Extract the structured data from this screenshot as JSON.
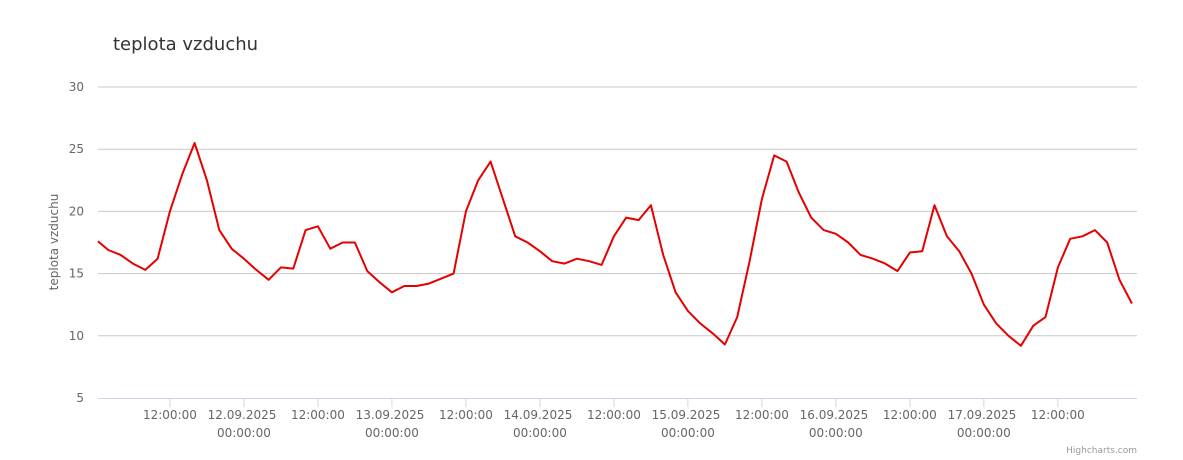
{
  "chart_data": {
    "type": "line",
    "title": "teplota vzduchu",
    "y_label": "teplota vzduchu",
    "credits": "Highcharts.com",
    "x": [
      "2025-09-11T00:20",
      "2025-09-11T02:00",
      "2025-09-11T04:00",
      "2025-09-11T06:00",
      "2025-09-11T08:00",
      "2025-09-11T10:00",
      "2025-09-11T12:00",
      "2025-09-11T14:00",
      "2025-09-11T16:00",
      "2025-09-11T18:00",
      "2025-09-11T20:00",
      "2025-09-11T22:00",
      "2025-09-12T00:00",
      "2025-09-12T02:00",
      "2025-09-12T04:00",
      "2025-09-12T06:00",
      "2025-09-12T08:00",
      "2025-09-12T10:00",
      "2025-09-12T12:00",
      "2025-09-12T14:00",
      "2025-09-12T16:00",
      "2025-09-12T18:00",
      "2025-09-12T20:00",
      "2025-09-12T22:00",
      "2025-09-13T00:00",
      "2025-09-13T02:00",
      "2025-09-13T04:00",
      "2025-09-13T06:00",
      "2025-09-13T08:00",
      "2025-09-13T10:00",
      "2025-09-13T12:00",
      "2025-09-13T14:00",
      "2025-09-13T16:00",
      "2025-09-13T18:00",
      "2025-09-13T20:00",
      "2025-09-13T22:00",
      "2025-09-14T00:00",
      "2025-09-14T02:00",
      "2025-09-14T04:00",
      "2025-09-14T06:00",
      "2025-09-14T08:00",
      "2025-09-14T10:00",
      "2025-09-14T12:00",
      "2025-09-14T14:00",
      "2025-09-14T16:00",
      "2025-09-14T18:00",
      "2025-09-14T20:00",
      "2025-09-14T22:00",
      "2025-09-15T00:00",
      "2025-09-15T02:00",
      "2025-09-15T04:00",
      "2025-09-15T06:00",
      "2025-09-15T08:00",
      "2025-09-15T10:00",
      "2025-09-15T12:00",
      "2025-09-15T14:00",
      "2025-09-15T16:00",
      "2025-09-15T18:00",
      "2025-09-15T20:00",
      "2025-09-15T22:00",
      "2025-09-16T00:00",
      "2025-09-16T02:00",
      "2025-09-16T04:00",
      "2025-09-16T06:00",
      "2025-09-16T08:00",
      "2025-09-16T10:00",
      "2025-09-16T12:00",
      "2025-09-16T14:00",
      "2025-09-16T16:00",
      "2025-09-16T18:00",
      "2025-09-16T20:00",
      "2025-09-16T22:00",
      "2025-09-17T00:00",
      "2025-09-17T02:00",
      "2025-09-17T04:00",
      "2025-09-17T06:00",
      "2025-09-17T08:00",
      "2025-09-17T10:00",
      "2025-09-17T12:00",
      "2025-09-17T14:00",
      "2025-09-17T16:00",
      "2025-09-17T18:00",
      "2025-09-17T20:00",
      "2025-09-17T22:00",
      "2025-09-18T00:00"
    ],
    "series": [
      {
        "name": "teplota vzduchu",
        "color": "#e60000",
        "values": [
          17.6,
          16.9,
          16.5,
          15.8,
          15.3,
          16.2,
          20.0,
          23.0,
          25.5,
          22.5,
          18.5,
          17.0,
          16.2,
          15.3,
          14.5,
          15.5,
          15.4,
          18.5,
          18.8,
          17.0,
          17.5,
          17.5,
          15.2,
          14.3,
          13.5,
          14.0,
          14.0,
          14.2,
          14.6,
          15.0,
          20.0,
          22.5,
          24.0,
          21.0,
          18.0,
          17.5,
          16.8,
          16.0,
          15.8,
          16.2,
          16.0,
          15.7,
          18.0,
          19.5,
          19.3,
          20.5,
          16.5,
          13.5,
          12.0,
          11.0,
          10.2,
          9.3,
          11.5,
          16.0,
          21.0,
          24.5,
          24.0,
          21.5,
          19.5,
          18.5,
          18.2,
          17.5,
          16.5,
          16.2,
          15.8,
          15.2,
          16.7,
          16.8,
          20.5,
          18.0,
          16.8,
          15.0,
          12.5,
          11.0,
          10.0,
          9.2,
          10.8,
          11.5,
          15.5,
          17.8,
          18.0,
          18.5,
          17.5,
          14.5,
          12.6
        ]
      }
    ],
    "xlim": [
      "2025-09-11T00:20",
      "2025-09-18T00:50"
    ],
    "xticks": [
      {
        "value": "2025-09-11T12:00",
        "label": "12:00:00"
      },
      {
        "value": "2025-09-12T00:00",
        "label": "12.09.2025 00:00:00"
      },
      {
        "value": "2025-09-12T12:00",
        "label": "12:00:00"
      },
      {
        "value": "2025-09-13T00:00",
        "label": "13.09.2025 00:00:00"
      },
      {
        "value": "2025-09-13T12:00",
        "label": "12:00:00"
      },
      {
        "value": "2025-09-14T00:00",
        "label": "14.09.2025 00:00:00"
      },
      {
        "value": "2025-09-14T12:00",
        "label": "12:00:00"
      },
      {
        "value": "2025-09-15T00:00",
        "label": "15.09.2025 00:00:00"
      },
      {
        "value": "2025-09-15T12:00",
        "label": "12:00:00"
      },
      {
        "value": "2025-09-16T00:00",
        "label": "16.09.2025 00:00:00"
      },
      {
        "value": "2025-09-16T12:00",
        "label": "12:00:00"
      },
      {
        "value": "2025-09-17T00:00",
        "label": "17.09.2025 00:00:00"
      },
      {
        "value": "2025-09-17T12:00",
        "label": "12:00:00"
      }
    ],
    "ylim": [
      5,
      30
    ],
    "yticks": [
      5,
      10,
      15,
      20,
      25,
      30
    ],
    "grid": true
  }
}
